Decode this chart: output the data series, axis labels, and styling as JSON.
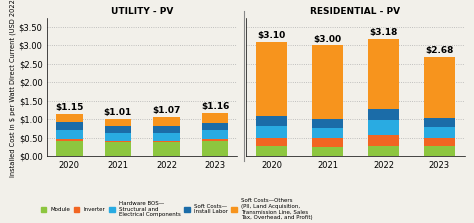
{
  "years": [
    "2020",
    "2021",
    "2022",
    "2023"
  ],
  "utility": {
    "title": "UTILITY - PV",
    "totals": [
      1.15,
      1.01,
      1.07,
      1.16
    ],
    "module": [
      0.42,
      0.38,
      0.38,
      0.42
    ],
    "inverter": [
      0.05,
      0.04,
      0.04,
      0.04
    ],
    "hardware_bos": [
      0.25,
      0.22,
      0.22,
      0.24
    ],
    "soft_labor": [
      0.2,
      0.18,
      0.18,
      0.2
    ],
    "soft_others": [
      0.23,
      0.19,
      0.25,
      0.26
    ]
  },
  "residential": {
    "title": "RESIDENTIAL - PV",
    "totals": [
      3.1,
      3.0,
      3.18,
      2.68
    ],
    "module": [
      0.28,
      0.26,
      0.28,
      0.28
    ],
    "inverter": [
      0.22,
      0.22,
      0.28,
      0.2
    ],
    "hardware_bos": [
      0.32,
      0.28,
      0.42,
      0.3
    ],
    "soft_labor": [
      0.28,
      0.24,
      0.3,
      0.24
    ],
    "soft_others": [
      2.0,
      2.0,
      1.9,
      1.66
    ]
  },
  "colors": {
    "module": "#8dc63f",
    "inverter": "#f26522",
    "hardware_bos": "#29abe2",
    "soft_labor": "#1b6ca8",
    "soft_others": "#f7941d"
  },
  "ylabel": "Installed Cost in $ per Watt Direct Current (USD 2022)",
  "ylim": [
    0.0,
    3.75
  ],
  "yticks": [
    0.0,
    0.5,
    1.0,
    1.5,
    2.0,
    2.5,
    3.0,
    3.5
  ],
  "yticklabels": [
    "$0.00",
    "$0.50",
    "$1.00",
    "$1.50",
    "$2.00",
    "$2.50",
    "$3.00",
    "$3.50"
  ],
  "legend_labels": [
    "Module",
    "Inverter",
    "Hardware BOS—\nStructural and\nElectrical Components",
    "Soft Costs—\nInstall Labor",
    "Soft Costs—Others\n(PII, Land Acquisition,\nTransmission Line, Sales\nTax, Overhead, and Profit)"
  ],
  "bg_color": "#f2f0ea",
  "total_fontsize": 6.5,
  "bar_width": 0.55
}
